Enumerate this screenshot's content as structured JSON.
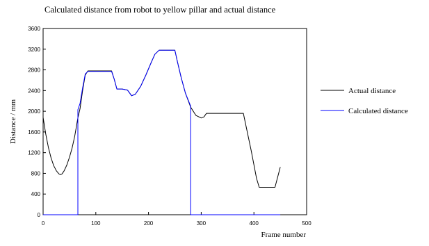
{
  "chart_data": {
    "type": "line",
    "title": "Calculated distance from robot to yellow pillar and actual distance",
    "xlabel": "Frame number",
    "ylabel": "Distance / mm",
    "xlim": [
      0,
      500
    ],
    "ylim": [
      0,
      3600
    ],
    "xticks": [
      "0",
      "100",
      "200",
      "300",
      "400",
      "500"
    ],
    "yticks": [
      "0",
      "400",
      "800",
      "1200",
      "1600",
      "2000",
      "2400",
      "2800",
      "3200",
      "3600"
    ],
    "grid": false,
    "legend_position": "right",
    "series": [
      {
        "name": "Actual distance",
        "color": "#000000",
        "points": [
          [
            0,
            1880
          ],
          [
            5,
            1560
          ],
          [
            10,
            1300
          ],
          [
            15,
            1100
          ],
          [
            20,
            950
          ],
          [
            25,
            850
          ],
          [
            30,
            790
          ],
          [
            33,
            775
          ],
          [
            36,
            790
          ],
          [
            40,
            850
          ],
          [
            45,
            960
          ],
          [
            50,
            1110
          ],
          [
            55,
            1290
          ],
          [
            60,
            1520
          ],
          [
            63,
            1700
          ],
          [
            66,
            1870
          ],
          [
            70,
            2050
          ],
          [
            75,
            2400
          ],
          [
            80,
            2700
          ],
          [
            85,
            2780
          ],
          [
            100,
            2780
          ],
          [
            130,
            2780
          ],
          [
            135,
            2620
          ],
          [
            140,
            2430
          ],
          [
            150,
            2430
          ],
          [
            160,
            2410
          ],
          [
            168,
            2300
          ],
          [
            175,
            2330
          ],
          [
            185,
            2480
          ],
          [
            195,
            2700
          ],
          [
            205,
            2940
          ],
          [
            212,
            3100
          ],
          [
            220,
            3180
          ],
          [
            240,
            3180
          ],
          [
            250,
            3180
          ],
          [
            255,
            2950
          ],
          [
            262,
            2650
          ],
          [
            270,
            2350
          ],
          [
            280,
            2080
          ],
          [
            290,
            1920
          ],
          [
            300,
            1870
          ],
          [
            305,
            1890
          ],
          [
            310,
            1960
          ],
          [
            330,
            1960
          ],
          [
            350,
            1960
          ],
          [
            380,
            1960
          ],
          [
            395,
            1230
          ],
          [
            405,
            700
          ],
          [
            410,
            530
          ],
          [
            425,
            530
          ],
          [
            440,
            530
          ],
          [
            450,
            920
          ]
        ]
      },
      {
        "name": "Calculated distance",
        "color": "#0000ff",
        "points": [
          [
            0,
            0
          ],
          [
            66,
            0
          ],
          [
            66,
            2030
          ],
          [
            70,
            2150
          ],
          [
            75,
            2450
          ],
          [
            80,
            2720
          ],
          [
            85,
            2770
          ],
          [
            100,
            2770
          ],
          [
            130,
            2770
          ],
          [
            135,
            2620
          ],
          [
            140,
            2430
          ],
          [
            150,
            2430
          ],
          [
            160,
            2410
          ],
          [
            168,
            2300
          ],
          [
            175,
            2330
          ],
          [
            185,
            2480
          ],
          [
            195,
            2700
          ],
          [
            205,
            2940
          ],
          [
            212,
            3100
          ],
          [
            220,
            3180
          ],
          [
            240,
            3180
          ],
          [
            250,
            3180
          ],
          [
            255,
            2950
          ],
          [
            262,
            2650
          ],
          [
            270,
            2350
          ],
          [
            280,
            2100
          ],
          [
            280,
            0
          ],
          [
            450,
            0
          ]
        ]
      }
    ]
  }
}
